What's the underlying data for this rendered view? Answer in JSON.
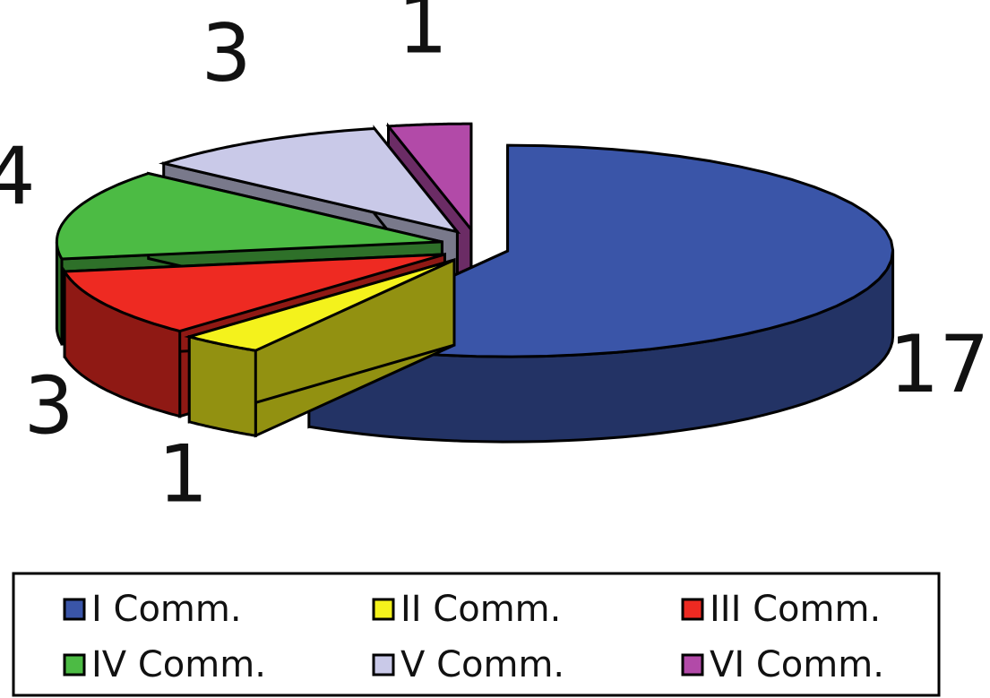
{
  "chart_data": {
    "type": "pie",
    "categories": [
      "I Comm.",
      "II Comm.",
      "III Comm.",
      "IV Comm.",
      "V Comm.",
      "VI Comm."
    ],
    "values": [
      17,
      1,
      3,
      4,
      3,
      1
    ],
    "colors": [
      "#3a55a8",
      "#f4f21c",
      "#ee2a22",
      "#4cbb44",
      "#c9c9e8",
      "#b24aa8"
    ],
    "legend": "bottom"
  }
}
